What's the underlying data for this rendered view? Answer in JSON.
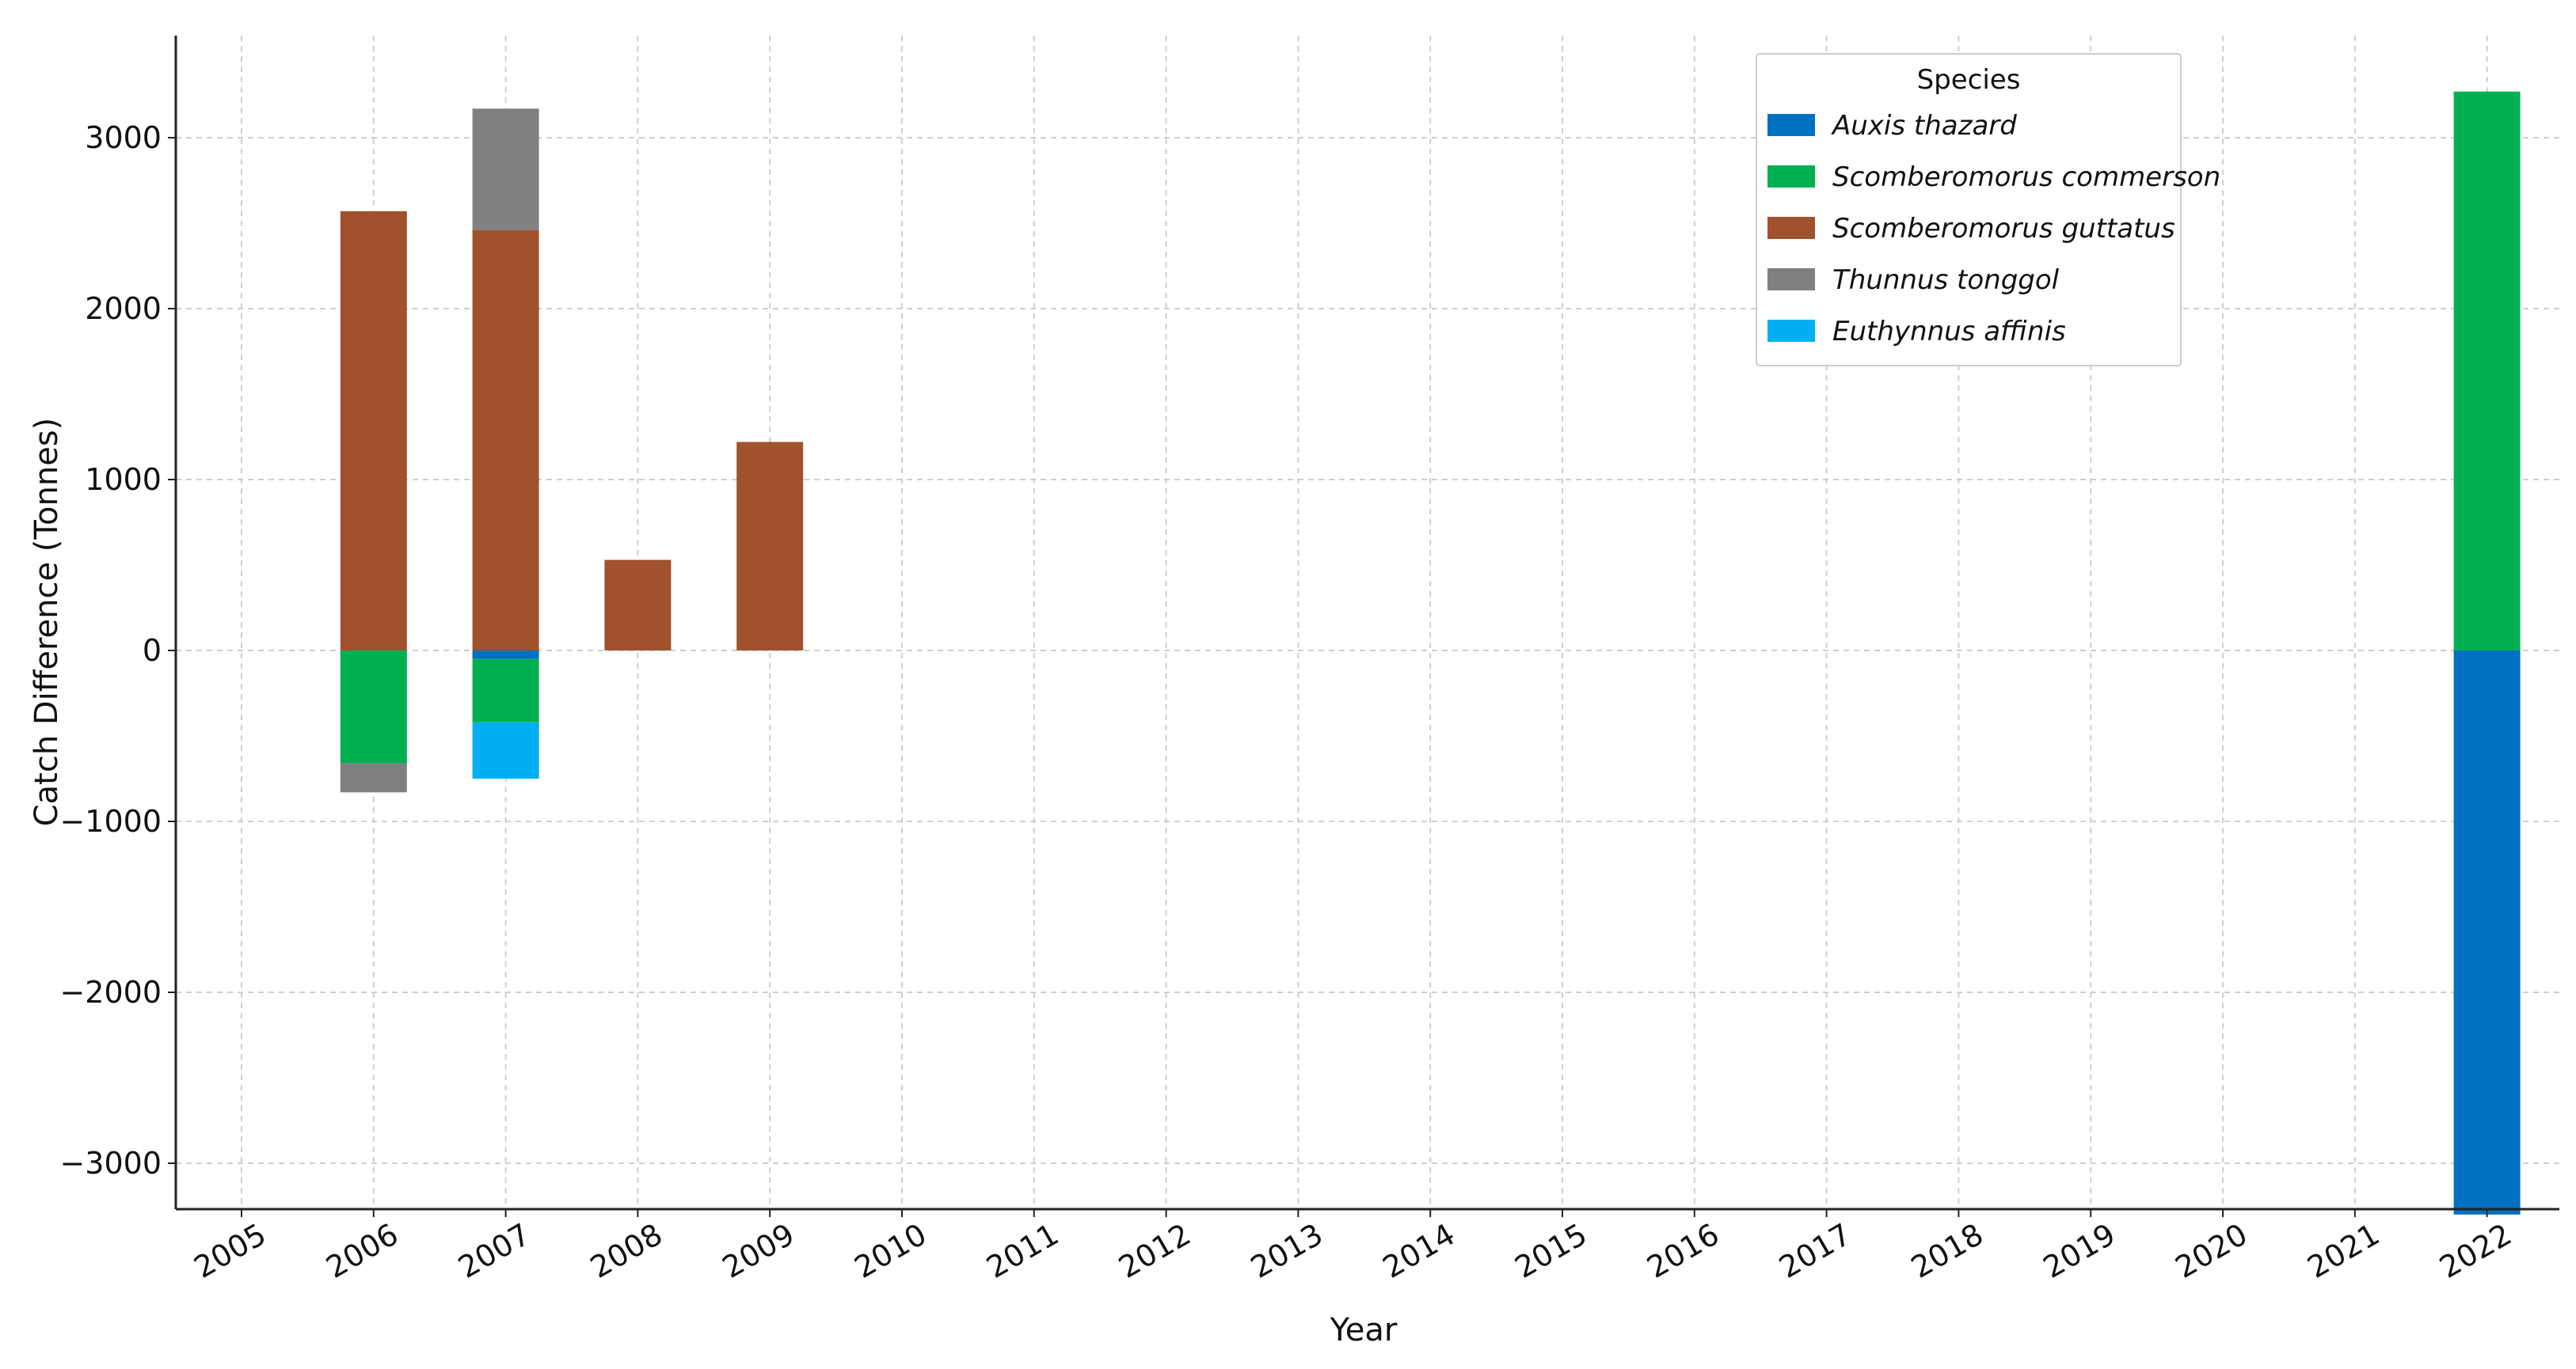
{
  "chart_data": {
    "type": "bar",
    "stacked": true,
    "title": "",
    "xlabel": "Year",
    "ylabel": "Catch Difference (Tonnes)",
    "categories": [
      "2005",
      "2006",
      "2007",
      "2008",
      "2009",
      "2010",
      "2011",
      "2012",
      "2013",
      "2014",
      "2015",
      "2016",
      "2017",
      "2018",
      "2019",
      "2020",
      "2021",
      "2022"
    ],
    "ylim": [
      -3300,
      3600
    ],
    "yticks": [
      3000,
      2000,
      1000,
      0,
      -1000,
      -2000,
      -3000
    ],
    "ytick_labels": [
      "3000",
      "2000",
      "1000",
      "0",
      "−1000",
      "−2000",
      "−3000"
    ],
    "grid": true,
    "legend": {
      "title": "Species",
      "position": "top-right"
    },
    "series": [
      {
        "name": "Auxis thazard",
        "color": "#0070c0",
        "values": [
          0,
          0,
          -50,
          0,
          0,
          0,
          0,
          0,
          0,
          0,
          0,
          0,
          0,
          0,
          0,
          0,
          0,
          -3300
        ]
      },
      {
        "name": "Scomberomorus commerson",
        "color": "#00b050",
        "values": [
          0,
          -660,
          -370,
          0,
          0,
          0,
          0,
          0,
          0,
          0,
          0,
          0,
          0,
          0,
          0,
          0,
          0,
          3270
        ]
      },
      {
        "name": "Scomberomorus guttatus",
        "color": "#a0522d",
        "values": [
          0,
          2570,
          2460,
          530,
          1220,
          0,
          0,
          0,
          0,
          0,
          0,
          0,
          0,
          0,
          0,
          0,
          0,
          0
        ]
      },
      {
        "name": "Thunnus tonggol",
        "color": "#808080",
        "values": [
          0,
          -170,
          710,
          0,
          0,
          0,
          0,
          0,
          0,
          0,
          0,
          0,
          0,
          0,
          0,
          0,
          0,
          0
        ]
      },
      {
        "name": "Euthynnus affinis",
        "color": "#00b0f0",
        "values": [
          0,
          0,
          -330,
          0,
          0,
          0,
          0,
          0,
          0,
          0,
          0,
          0,
          0,
          0,
          0,
          0,
          0,
          0
        ]
      }
    ]
  }
}
